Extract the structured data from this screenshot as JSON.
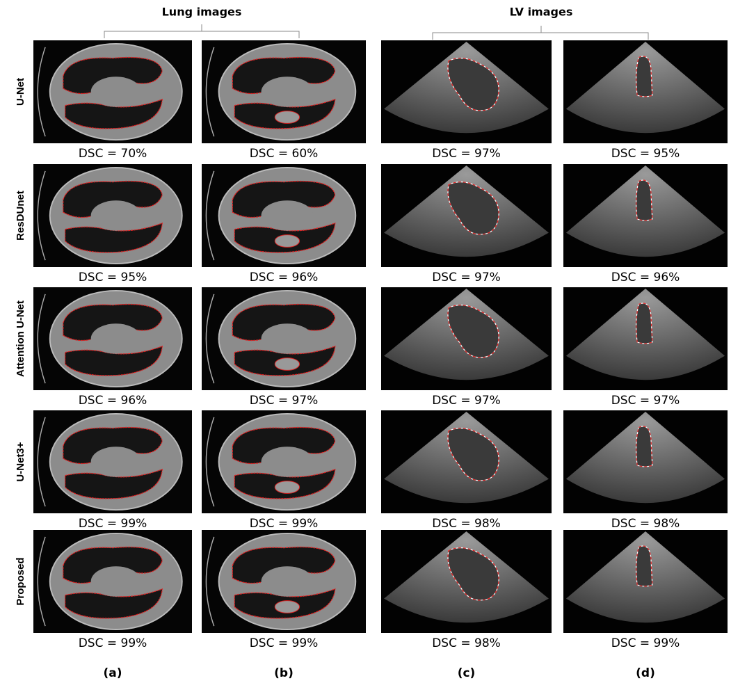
{
  "header": {
    "groups": [
      {
        "label": "Lung images"
      },
      {
        "label": "LV images"
      }
    ]
  },
  "rows": [
    {
      "method": "U-Net",
      "cells": [
        "DSC = 70%",
        "DSC = 60%",
        "DSC = 97%",
        "DSC = 95%"
      ]
    },
    {
      "method": "ResDUnet",
      "cells": [
        "DSC = 95%",
        "DSC = 96%",
        "DSC = 97%",
        "DSC = 96%"
      ]
    },
    {
      "method": "Attention U-Net",
      "cells": [
        "DSC = 96%",
        "DSC = 97%",
        "DSC = 97%",
        "DSC = 97%"
      ]
    },
    {
      "method": "U-Net3+",
      "cells": [
        "DSC = 99%",
        "DSC = 99%",
        "DSC = 98%",
        "DSC = 98%"
      ]
    },
    {
      "method": "Proposed",
      "cells": [
        "DSC = 99%",
        "DSC = 99%",
        "DSC = 98%",
        "DSC = 99%"
      ]
    }
  ],
  "columns": [
    "(a)",
    "(b)",
    "(c)",
    "(d)"
  ]
}
